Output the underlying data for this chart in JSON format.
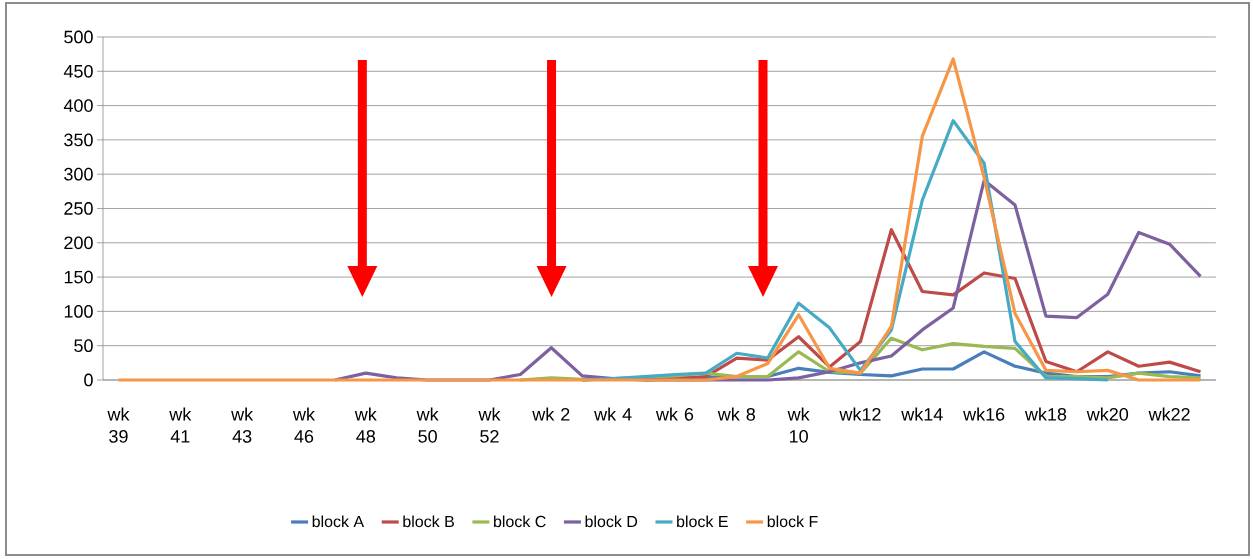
{
  "chart_data": {
    "type": "line",
    "categories": [
      "wk 39",
      null,
      "wk 41",
      null,
      "wk 43",
      null,
      "wk 46",
      null,
      "wk 48",
      null,
      "wk 50",
      null,
      "wk 52",
      null,
      "wk 2",
      null,
      "wk 4",
      null,
      "wk 6",
      null,
      "wk 8",
      null,
      "wk 10",
      null,
      "wk12",
      null,
      "wk14",
      null,
      "wk16",
      null,
      "wk18",
      null,
      "wk20",
      null,
      "wk22",
      null
    ],
    "series": [
      {
        "name": "block A",
        "color": "#4a7ebb",
        "values": [
          null,
          null,
          null,
          null,
          null,
          null,
          null,
          null,
          null,
          null,
          null,
          null,
          null,
          null,
          null,
          0,
          2,
          2,
          3,
          4,
          5,
          5,
          17,
          11,
          8,
          6,
          16,
          16,
          41,
          20,
          10,
          5,
          5,
          10,
          12,
          6
        ]
      },
      {
        "name": "block B",
        "color": "#be4b48",
        "values": [
          null,
          null,
          null,
          null,
          null,
          null,
          null,
          null,
          null,
          null,
          null,
          null,
          null,
          null,
          null,
          null,
          null,
          0,
          2,
          5,
          32,
          29,
          63,
          19,
          56,
          219,
          129,
          124,
          156,
          148,
          27,
          12,
          41,
          20,
          26,
          12
        ]
      },
      {
        "name": "block C",
        "color": "#98b954",
        "values": [
          null,
          null,
          null,
          null,
          null,
          null,
          null,
          null,
          null,
          null,
          null,
          null,
          null,
          0,
          3,
          1,
          2,
          4,
          6,
          10,
          5,
          5,
          41,
          12,
          10,
          61,
          44,
          53,
          49,
          46,
          5,
          5,
          3,
          10,
          5,
          3
        ]
      },
      {
        "name": "block D",
        "color": "#7d60a0",
        "values": [
          null,
          null,
          null,
          null,
          null,
          null,
          null,
          0,
          10,
          3,
          0,
          null,
          0,
          8,
          47,
          6,
          2,
          0,
          null,
          null,
          null,
          0,
          3,
          12,
          25,
          35,
          73,
          105,
          291,
          255,
          93,
          91,
          125,
          215,
          198,
          151
        ]
      },
      {
        "name": "block E",
        "color": "#46aac5",
        "values": [
          null,
          null,
          null,
          null,
          null,
          null,
          null,
          null,
          null,
          null,
          null,
          null,
          null,
          null,
          null,
          0,
          2,
          5,
          8,
          10,
          39,
          32,
          112,
          76,
          14,
          73,
          262,
          378,
          316,
          56,
          3,
          2,
          0,
          null,
          null,
          null
        ]
      },
      {
        "name": "block F",
        "color": "#f79646",
        "values": [
          0,
          0,
          0,
          0,
          0,
          0,
          0,
          0,
          0,
          0,
          0,
          0,
          0,
          0,
          0,
          0,
          0,
          0,
          0,
          0,
          5,
          24,
          95,
          17,
          10,
          78,
          355,
          468,
          295,
          97,
          14,
          12,
          14,
          0,
          0,
          0
        ]
      }
    ],
    "ylim": [
      0,
      500
    ],
    "yticks": [
      0,
      50,
      100,
      150,
      200,
      250,
      300,
      350,
      400,
      450,
      500
    ],
    "grid": "y",
    "legend": "bottom"
  }
}
